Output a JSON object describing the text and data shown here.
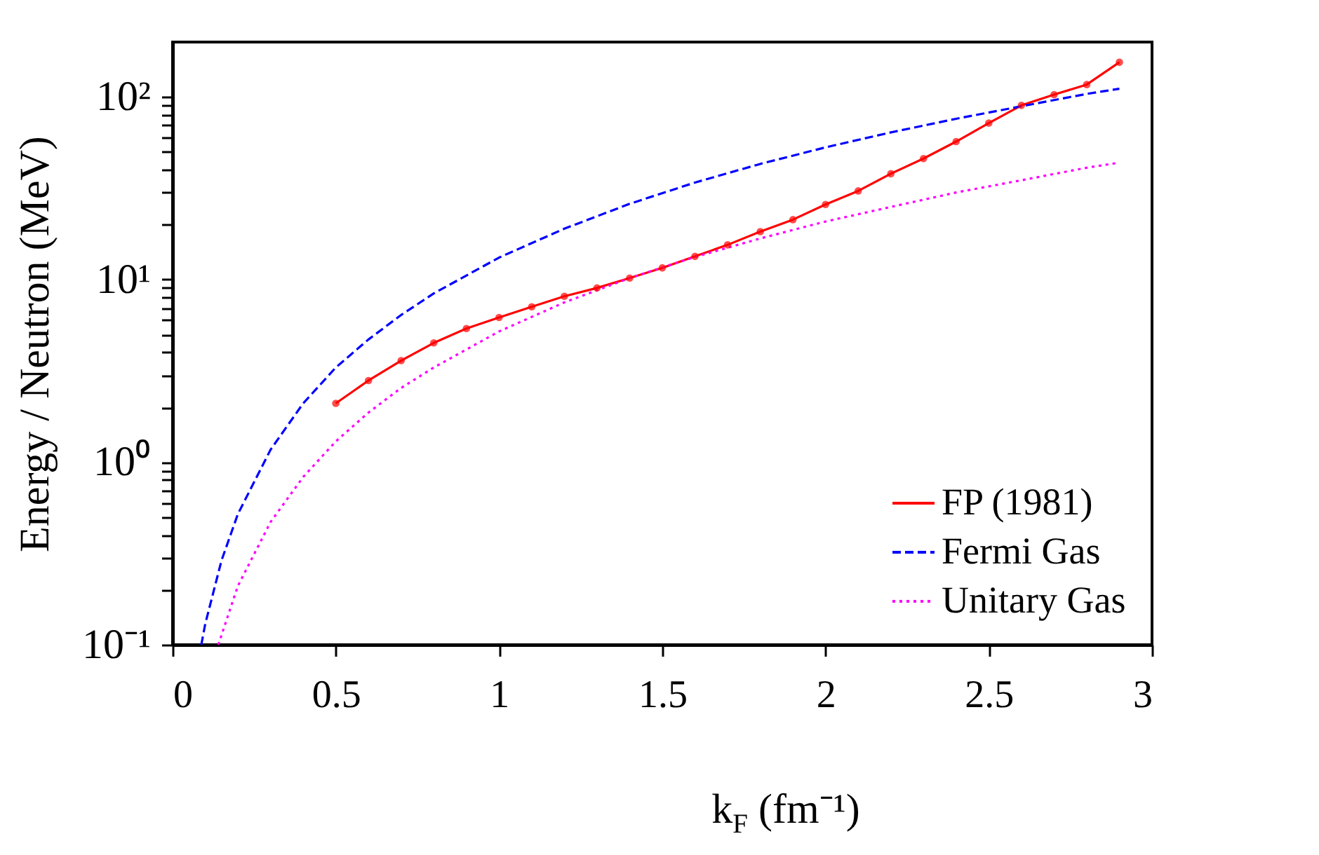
{
  "chart_data": {
    "type": "line",
    "xlabel": "k$_{F}$ (fm⁻¹)",
    "ylabel": "Energy / Neutron (MeV)",
    "log": "y",
    "grid": false,
    "legend": "bottom right",
    "xlim": [
      0,
      3
    ],
    "xticks": [
      0,
      0.5,
      1,
      1.5,
      2,
      2.5,
      3
    ],
    "ylim": [
      0.1,
      200
    ],
    "yticks": [
      {
        "value": 0.1,
        "label": "10⁻¹"
      },
      {
        "value": 0.2,
        "label": null
      },
      {
        "value": 0.3,
        "label": null
      },
      {
        "value": 0.4,
        "label": null
      },
      {
        "value": 0.5,
        "label": null
      },
      {
        "value": 0.6,
        "label": null
      },
      {
        "value": 0.7,
        "label": null
      },
      {
        "value": 0.8,
        "label": null
      },
      {
        "value": 0.9,
        "label": null
      },
      {
        "value": 1,
        "label": "10⁰"
      },
      {
        "value": 2,
        "label": null
      },
      {
        "value": 3,
        "label": null
      },
      {
        "value": 4,
        "label": null
      },
      {
        "value": 5,
        "label": null
      },
      {
        "value": 6,
        "label": null
      },
      {
        "value": 7,
        "label": null
      },
      {
        "value": 8,
        "label": null
      },
      {
        "value": 9,
        "label": null
      },
      {
        "value": 10,
        "label": "10¹"
      },
      {
        "value": 20,
        "label": null
      },
      {
        "value": 30,
        "label": null
      },
      {
        "value": 40,
        "label": null
      },
      {
        "value": 50,
        "label": null
      },
      {
        "value": 60,
        "label": null
      },
      {
        "value": 70,
        "label": null
      },
      {
        "value": 80,
        "label": null
      },
      {
        "value": 90,
        "label": null
      },
      {
        "value": 100,
        "label": "10²"
      }
    ],
    "series": [
      {
        "name": "FP (1981)",
        "color": "#ff0000",
        "marker": "circle",
        "line_style": "solid",
        "x": [
          0.5,
          0.6,
          0.7,
          0.8,
          0.9,
          1.0,
          1.1,
          1.2,
          1.3,
          1.4,
          1.5,
          1.6,
          1.7,
          1.8,
          1.9,
          2.0,
          2.1,
          2.2,
          2.3,
          2.4,
          2.5,
          2.6,
          2.7,
          2.8,
          2.9
        ],
        "values": [
          2.1,
          2.8,
          3.6,
          4.5,
          5.4,
          6.2,
          7.1,
          8.1,
          9.0,
          10.2,
          11.6,
          13.4,
          15.5,
          18.3,
          21.3,
          25.8,
          30.6,
          38,
          46,
          57,
          72,
          90,
          103,
          117,
          155
        ]
      },
      {
        "name": "Fermi Gas",
        "color": "#0000ff",
        "marker": "none",
        "line_style": "dashed",
        "x": [
          0.088,
          0.1,
          0.15,
          0.2,
          0.3,
          0.4,
          0.5,
          0.6,
          0.7,
          0.8,
          1.0,
          1.2,
          1.4,
          1.6,
          1.8,
          2.0,
          2.2,
          2.4,
          2.6,
          2.8,
          2.9
        ],
        "values": [
          0.1,
          0.13,
          0.29,
          0.52,
          1.17,
          2.1,
          3.3,
          4.7,
          6.4,
          8.4,
          13.2,
          19,
          26,
          34,
          43,
          53,
          64,
          76,
          89,
          104,
          111
        ]
      },
      {
        "name": "Unitary Gas",
        "color": "#ff00ff",
        "marker": "none",
        "line_style": "dotted",
        "x": [
          0.14,
          0.2,
          0.3,
          0.4,
          0.5,
          0.6,
          0.7,
          0.8,
          1.0,
          1.2,
          1.4,
          1.6,
          1.8,
          2.0,
          2.2,
          2.4,
          2.6,
          2.8,
          2.9
        ],
        "values": [
          0.1,
          0.21,
          0.47,
          0.83,
          1.3,
          1.87,
          2.55,
          3.3,
          5.2,
          7.5,
          10.2,
          13.3,
          16.8,
          20.8,
          25,
          30,
          35,
          41,
          43.7
        ]
      }
    ]
  }
}
